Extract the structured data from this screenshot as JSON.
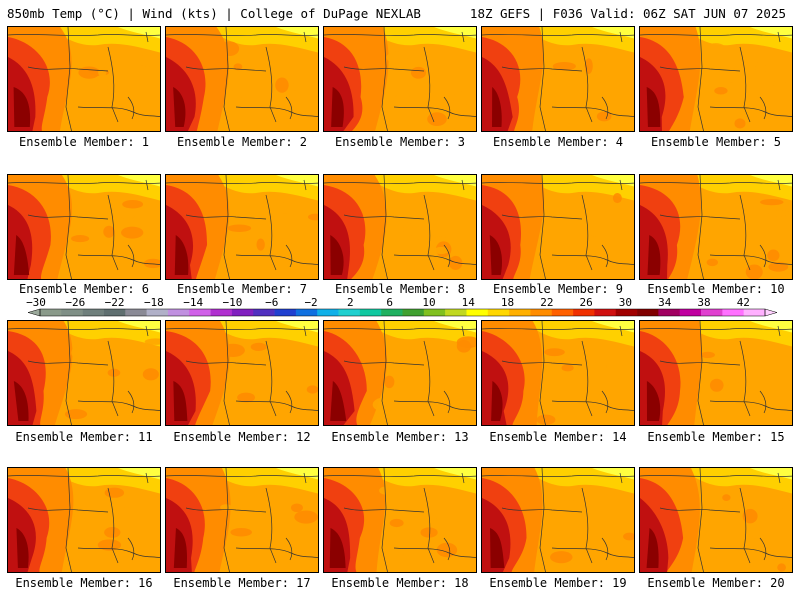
{
  "header": {
    "left": "850mb Temp (°C) | Wind (kts) | College of DuPage NEXLAB",
    "right": "18Z GEFS | F036 Valid: 06Z SAT JUN 07 2025"
  },
  "members": [
    {
      "label": "Ensemble Member: 1"
    },
    {
      "label": "Ensemble Member: 2"
    },
    {
      "label": "Ensemble Member: 3"
    },
    {
      "label": "Ensemble Member: 4"
    },
    {
      "label": "Ensemble Member: 5"
    },
    {
      "label": "Ensemble Member: 6"
    },
    {
      "label": "Ensemble Member: 7"
    },
    {
      "label": "Ensemble Member: 8"
    },
    {
      "label": "Ensemble Member: 9"
    },
    {
      "label": "Ensemble Member: 10"
    },
    {
      "label": "Ensemble Member: 11"
    },
    {
      "label": "Ensemble Member: 12"
    },
    {
      "label": "Ensemble Member: 13"
    },
    {
      "label": "Ensemble Member: 14"
    },
    {
      "label": "Ensemble Member: 15"
    },
    {
      "label": "Ensemble Member: 16"
    },
    {
      "label": "Ensemble Member: 17"
    },
    {
      "label": "Ensemble Member: 18"
    },
    {
      "label": "Ensemble Member: 19"
    },
    {
      "label": "Ensemble Member: 20"
    }
  ],
  "colorbar": {
    "ticks": [
      "-30",
      "-26",
      "-22",
      "-18",
      "-14",
      "-10",
      "-6",
      "-2",
      "2",
      "6",
      "10",
      "14",
      "18",
      "22",
      "26",
      "30",
      "34",
      "38",
      "42"
    ],
    "colors": [
      "#8a9a8a",
      "#7f8f86",
      "#6f7f7c",
      "#5f6f70",
      "#8a8a96",
      "#b0b0c8",
      "#c090e0",
      "#d060e8",
      "#b030d0",
      "#8020c0",
      "#5030c0",
      "#2040d0",
      "#1070e0",
      "#10b0e8",
      "#20d0d0",
      "#10c8a0",
      "#20b060",
      "#40a030",
      "#80c020",
      "#c0d820",
      "#ffff00",
      "#ffd700",
      "#ffb000",
      "#ff8c00",
      "#ff6000",
      "#f03000",
      "#d01010",
      "#a00000",
      "#800000",
      "#a00060",
      "#c000a0",
      "#e040d0",
      "#ff70ff",
      "#ffb0ff"
    ]
  },
  "map_colors": {
    "warm_base": "#ffa500",
    "mid": "#ff8c00",
    "hot": "#f04010",
    "very_hot": "#c01010",
    "hottest": "#8b0000",
    "cool_north": "#ffd000",
    "coldest_north": "#ffff40"
  }
}
